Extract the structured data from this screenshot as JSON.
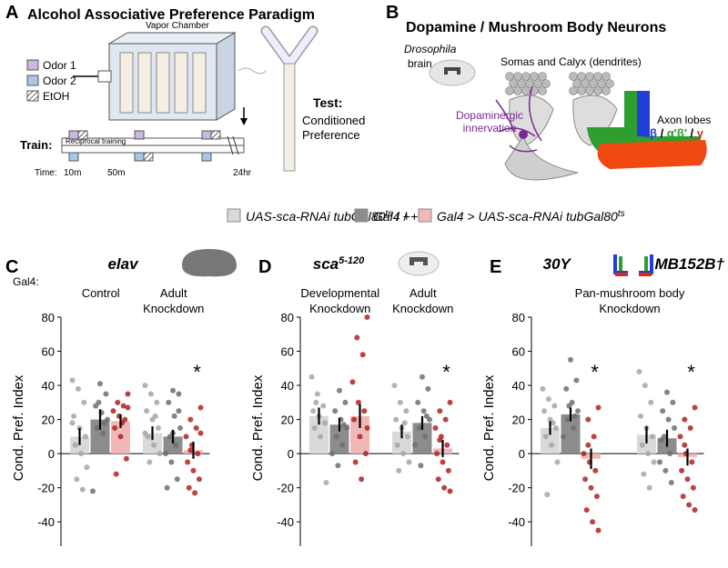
{
  "panel_labels": [
    "A",
    "B",
    "C",
    "D",
    "E"
  ],
  "panel_a": {
    "title": "Alcohol Associative Preference Paradigm",
    "chamber": "Vapor Chamber",
    "key": [
      "Odor 1",
      "Odor 2",
      "EtOH"
    ],
    "train": "Train:",
    "training": "Reciprocal training",
    "time": "Time:",
    "times": [
      "10m",
      "50m",
      "24hr"
    ],
    "test": "Test:",
    "test_lines": [
      "Conditioned",
      "Preference"
    ]
  },
  "panel_b": {
    "title": "Dopamine / Mushroom Body Neurons",
    "species": "Drosophila",
    "brain": "brain",
    "somas": "Somas and Calyx (dendrites)",
    "innervation": [
      "Dopaminergic",
      "innervation"
    ],
    "lobes": "Axon lobes",
    "separator": "/",
    "lobe_names": [
      {
        "text": "αβ",
        "color": "#1f3fd6"
      },
      {
        "text": "α'β'",
        "color": "#2e9e2e"
      },
      {
        "text": "γ",
        "color": "#e02a10"
      }
    ]
  },
  "legend": [
    {
      "color": "#d9d9d9",
      "parts": [
        {
          "text": "UAS-sca-RNAi tubGal80",
          "style": "italic"
        },
        {
          "text": "ts",
          "style": "sup"
        },
        {
          "text": " / +",
          "style": "normal"
        }
      ]
    },
    {
      "color": "#8c8c8c",
      "parts": [
        {
          "text": "Gal4",
          "style": "italic"
        },
        {
          "text": " / +",
          "style": "normal"
        }
      ]
    },
    {
      "color": "#f2b8b8",
      "parts": [
        {
          "text": "Gal4",
          "style": "italic"
        },
        {
          "text": " > ",
          "style": "normal"
        },
        {
          "text": "UAS-sca-RNAi tubGal80",
          "style": "italic"
        },
        {
          "text": "ts",
          "style": "sup"
        }
      ]
    }
  ],
  "row_label": "Gal4:",
  "chart_data": [
    {
      "type": "bar",
      "title": "elav",
      "categories": [
        "Control",
        "Adult Knockdown"
      ],
      "ylabel": "Cond. Pref. Index",
      "ylim": [
        -50,
        80
      ],
      "yticks": [
        -40,
        -20,
        0,
        20,
        40,
        60,
        80
      ],
      "series": [
        {
          "color": "#d9d9d9",
          "point_color": "#a6a6a6",
          "values": [
            10,
            12
          ],
          "errors": [
            5,
            4
          ],
          "annotations": [
            null,
            null
          ],
          "points": [
            [
              43,
              38,
              30,
              22,
              15,
              10,
              5,
              0,
              -8,
              -15,
              -21,
              18
            ],
            [
              40,
              35,
              30,
              25,
              20,
              15,
              10,
              5,
              0,
              -5,
              22,
              12
            ]
          ]
        },
        {
          "color": "#8c8c8c",
          "point_color": "#6e6e6e",
          "values": [
            20,
            10
          ],
          "errors": [
            6,
            4
          ],
          "annotations": [
            null,
            null
          ],
          "points": [
            [
              41,
              35,
              28,
              24,
              20,
              15,
              12,
              -22,
              30,
              18
            ],
            [
              37,
              35,
              30,
              22,
              15,
              10,
              5,
              0,
              -5,
              -15,
              -20,
              12,
              25
            ]
          ]
        },
        {
          "color": "#f2b8b8",
          "point_color": "#b22222",
          "values": [
            19,
            2
          ],
          "errors": [
            4,
            5
          ],
          "annotations": [
            null,
            "*"
          ],
          "points": [
            [
              35,
              30,
              28,
              25,
              22,
              20,
              15,
              10,
              -3,
              -12,
              18,
              27
            ],
            [
              27,
              20,
              15,
              10,
              5,
              0,
              -5,
              -10,
              -15,
              -20,
              -23,
              12,
              2
            ]
          ]
        }
      ]
    },
    {
      "type": "bar",
      "title": "sca",
      "title_sup": "5-120",
      "categories": [
        "Developmental Knockdown",
        "Adult Knockdown"
      ],
      "ylabel": "Cond. Pref. Index",
      "ylim": [
        -50,
        80
      ],
      "yticks": [
        -40,
        -20,
        0,
        20,
        40,
        60,
        80
      ],
      "series": [
        {
          "color": "#d9d9d9",
          "point_color": "#a6a6a6",
          "values": [
            22,
            13
          ],
          "errors": [
            5,
            4
          ],
          "annotations": [
            null,
            null
          ],
          "points": [
            [
              45,
              35,
              28,
              25,
              22,
              18,
              15,
              10,
              -17,
              30
            ],
            [
              40,
              30,
              25,
              20,
              15,
              10,
              5,
              0,
              -5,
              -10,
              18
            ]
          ]
        },
        {
          "color": "#8c8c8c",
          "point_color": "#6e6e6e",
          "values": [
            17,
            18
          ],
          "errors": [
            4,
            4
          ],
          "annotations": [
            null,
            null
          ],
          "points": [
            [
              37,
              30,
              25,
              20,
              15,
              10,
              5,
              0,
              -7,
              17
            ],
            [
              45,
              38,
              30,
              25,
              20,
              15,
              10,
              5,
              -7,
              22
            ]
          ]
        },
        {
          "color": "#f2b8b8",
          "point_color": "#b22222",
          "values": [
            22,
            3
          ],
          "errors": [
            7,
            5
          ],
          "annotations": [
            null,
            "*"
          ],
          "points": [
            [
              80,
              68,
              58,
              42,
              30,
              25,
              20,
              10,
              0,
              -5,
              -15,
              15
            ],
            [
              30,
              25,
              20,
              15,
              10,
              5,
              0,
              -5,
              -10,
              -15,
              -20,
              -22,
              8
            ]
          ]
        }
      ]
    },
    {
      "type": "bar",
      "categories": [
        "30Y",
        "MB152B†"
      ],
      "subtitle": "Pan-mushroom body Knockdown",
      "ylabel": "Cond. Pref. Index",
      "ylim": [
        -50,
        80
      ],
      "yticks": [
        -40,
        -20,
        0,
        20,
        40,
        60,
        80
      ],
      "series": [
        {
          "color": "#d9d9d9",
          "point_color": "#a6a6a6",
          "values": [
            15,
            11
          ],
          "errors": [
            4,
            5
          ],
          "annotations": [
            null,
            null
          ],
          "points": [
            [
              38,
              32,
              28,
              25,
              20,
              15,
              10,
              5,
              -5,
              -24,
              18
            ],
            [
              48,
              40,
              30,
              22,
              15,
              10,
              5,
              0,
              -5,
              -12,
              -20
            ]
          ]
        },
        {
          "color": "#8c8c8c",
          "point_color": "#6e6e6e",
          "values": [
            23,
            9
          ],
          "errors": [
            4,
            5
          ],
          "annotations": [
            null,
            null
          ],
          "points": [
            [
              55,
              43,
              38,
              30,
              25,
              20,
              15,
              10,
              28,
              22
            ],
            [
              36,
              30,
              25,
              20,
              15,
              10,
              0,
              -5,
              -10,
              -17,
              8
            ]
          ]
        },
        {
          "color": "#f2b8b8",
          "point_color": "#b22222",
          "values": [
            -3,
            -2
          ],
          "errors": [
            6,
            5
          ],
          "annotations": [
            "*",
            "*"
          ],
          "points": [
            [
              27,
              20,
              10,
              0,
              -5,
              -10,
              -15,
              -20,
              -25,
              -33,
              -40,
              -45,
              5
            ],
            [
              27,
              20,
              15,
              10,
              0,
              -5,
              -10,
              -15,
              -20,
              -25,
              -30,
              -33,
              5
            ]
          ]
        }
      ]
    }
  ]
}
